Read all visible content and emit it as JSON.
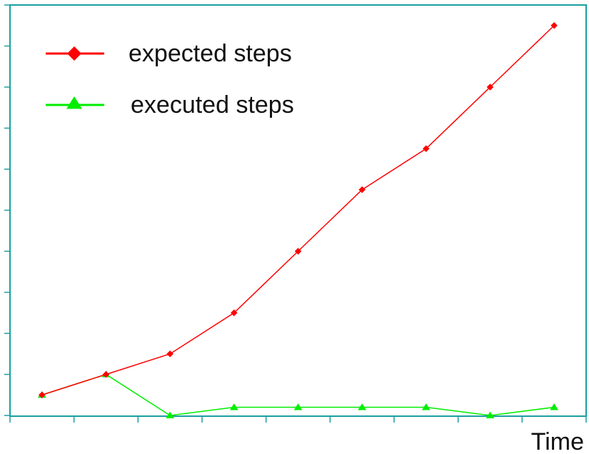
{
  "chart_data": {
    "type": "line",
    "x": [
      0,
      1,
      2,
      3,
      4,
      5,
      6,
      7,
      8
    ],
    "xlim": [
      -0.5,
      8.5
    ],
    "ylim": [
      0,
      10
    ],
    "xlabel": "Time",
    "ylabel": "",
    "x_ticks": [
      -0.5,
      0.5,
      1.5,
      2.5,
      3.5,
      4.5,
      5.5,
      6.5,
      7.5,
      8.5
    ],
    "y_ticks": [
      0,
      1,
      2,
      3,
      4,
      5,
      6,
      7,
      8,
      9,
      10
    ],
    "show_tick_labels": false,
    "grid": false,
    "legend_position": "top-left",
    "series": [
      {
        "name": "expected steps",
        "color": "#ff0000",
        "marker": "diamond",
        "values": [
          0.5,
          1,
          1.5,
          2.5,
          4,
          5.5,
          6.5,
          8,
          9.5
        ]
      },
      {
        "name": "executed steps",
        "color": "#00ee00",
        "marker": "triangle",
        "values": [
          0.5,
          1,
          0,
          0.2,
          0.2,
          0.2,
          0.2,
          0,
          0.2
        ]
      }
    ],
    "axis_color": "#1a9fa0"
  }
}
